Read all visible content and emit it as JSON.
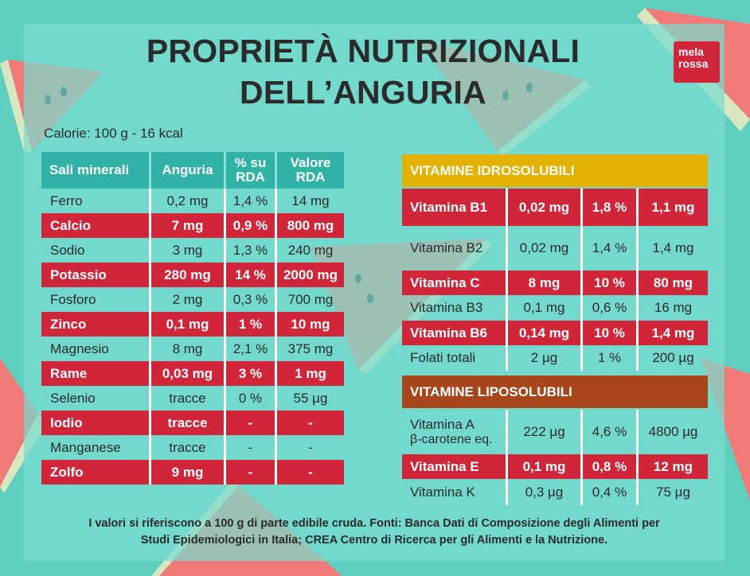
{
  "brand": {
    "logo_line1": "mela",
    "logo_line2": "rossa",
    "accent": "#d1263a",
    "teal": "#30b3a6",
    "yellow": "#e3b100",
    "brown": "#a8451b"
  },
  "title": {
    "line1": "PROPRIETÀ NUTRIZIONALI",
    "line2": "DELL’ANGURIA"
  },
  "calories": "Calorie: 100 g - 16 kcal",
  "minerals": {
    "headers": [
      "Sali minerali",
      "Anguria",
      "% su RDA",
      "Valore RDA"
    ],
    "rows": [
      {
        "name": "Ferro",
        "amount": "0,2 mg",
        "rda_pct": "1,4 %",
        "rda": "14 mg",
        "highlight": false
      },
      {
        "name": "Calcio",
        "amount": "7 mg",
        "rda_pct": "0,9 %",
        "rda": "800 mg",
        "highlight": true
      },
      {
        "name": "Sodio",
        "amount": "3 mg",
        "rda_pct": "1,3 %",
        "rda": "240 mg",
        "highlight": false
      },
      {
        "name": "Potassio",
        "amount": "280 mg",
        "rda_pct": "14 %",
        "rda": "2000 mg",
        "highlight": true
      },
      {
        "name": "Fosforo",
        "amount": "2 mg",
        "rda_pct": "0,3 %",
        "rda": "700 mg",
        "highlight": false
      },
      {
        "name": "Zinco",
        "amount": "0,1 mg",
        "rda_pct": "1 %",
        "rda": "10 mg",
        "highlight": true
      },
      {
        "name": "Magnesio",
        "amount": "8 mg",
        "rda_pct": "2,1 %",
        "rda": "375 mg",
        "highlight": false
      },
      {
        "name": "Rame",
        "amount": "0,03 mg",
        "rda_pct": "3 %",
        "rda": "1 mg",
        "highlight": true
      },
      {
        "name": "Selenio",
        "amount": "tracce",
        "rda_pct": "0 %",
        "rda": "55 µg",
        "highlight": false
      },
      {
        "name": "Iodio",
        "amount": "tracce",
        "rda_pct": "-",
        "rda": "-",
        "highlight": true
      },
      {
        "name": "Manganese",
        "amount": "tracce",
        "rda_pct": "-",
        "rda": "-",
        "highlight": false
      },
      {
        "name": "Zolfo",
        "amount": "9 mg",
        "rda_pct": "-",
        "rda": "-",
        "highlight": true
      }
    ]
  },
  "water_soluble": {
    "header": "VITAMINE IDROSOLUBILI",
    "rows": [
      {
        "name": "Vitamina B1",
        "amount": "0,02 mg",
        "rda_pct": "1,8 %",
        "rda": "1,1 mg",
        "highlight": true
      },
      {
        "name": "Vitamina B2",
        "amount": "0,02 mg",
        "rda_pct": "1,4 %",
        "rda": "1,4 mg",
        "highlight": false
      },
      {
        "name": "Vitamina C",
        "amount": "8 mg",
        "rda_pct": "10 %",
        "rda": "80 mg",
        "highlight": true
      },
      {
        "name": "Vitamina B3",
        "amount": "0,1 mg",
        "rda_pct": "0,6 %",
        "rda": "16 mg",
        "highlight": false
      },
      {
        "name": "Vitamina B6",
        "amount": "0,14 mg",
        "rda_pct": "10 %",
        "rda": "1,4 mg",
        "highlight": true
      },
      {
        "name": "Folati totali",
        "amount": "2 µg",
        "rda_pct": "1 %",
        "rda": "200 µg",
        "highlight": false
      }
    ]
  },
  "fat_soluble": {
    "header": "VITAMINE LIPOSOLUBILI",
    "rows": [
      {
        "name": "Vitamina A",
        "name_sub": "β-carotene eq.",
        "amount": "222 µg",
        "rda_pct": "4,6 %",
        "rda": "4800 µg",
        "highlight": false
      },
      {
        "name": "Vitamina E",
        "name_sub": "",
        "amount": "0,1 mg",
        "rda_pct": "0,8 %",
        "rda": "12 mg",
        "highlight": true
      },
      {
        "name": "Vitamina K",
        "name_sub": "",
        "amount": "0,3 µg",
        "rda_pct": "0,4 %",
        "rda": "75 µg",
        "highlight": false
      }
    ]
  },
  "footnote": {
    "line1": "I valori si riferiscono a 100 g di parte edibile cruda. Fonti: Banca Dati di Composizione degli Alimenti per",
    "line2": "Studi Epidemiologici in Italia; CREA Centro di Ricerca per gli Alimenti e la Nutrizione."
  }
}
